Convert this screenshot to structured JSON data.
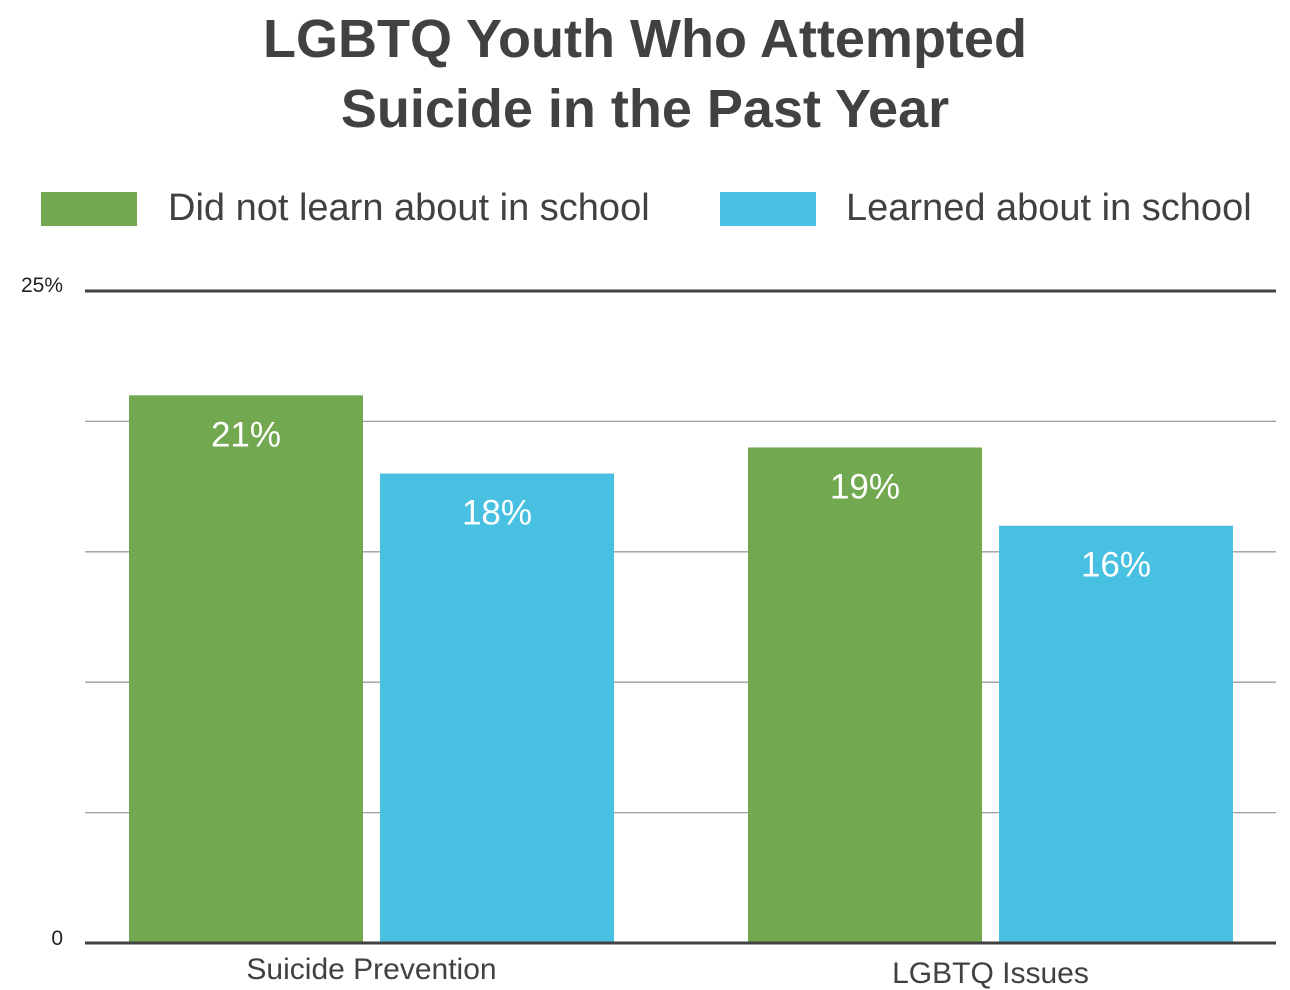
{
  "chart_data": {
    "type": "bar",
    "title_lines": [
      "LGBTQ Youth Who Attempted",
      "Suicide in the Past Year"
    ],
    "categories": [
      "Suicide Prevention",
      "LGBTQ Issues"
    ],
    "series": [
      {
        "name": "Did not learn about in school",
        "color": "#72a84f",
        "values": [
          21,
          19
        ],
        "labels": [
          "21%",
          "19%"
        ]
      },
      {
        "name": "Learned about in school",
        "color": "#48c0e2",
        "values": [
          18,
          16
        ],
        "labels": [
          "18%",
          "16%"
        ]
      }
    ],
    "ylim": [
      0,
      25
    ],
    "ytick_labels": {
      "top": "25%",
      "bottom": "0"
    },
    "grid": true,
    "legend_position": "top"
  }
}
